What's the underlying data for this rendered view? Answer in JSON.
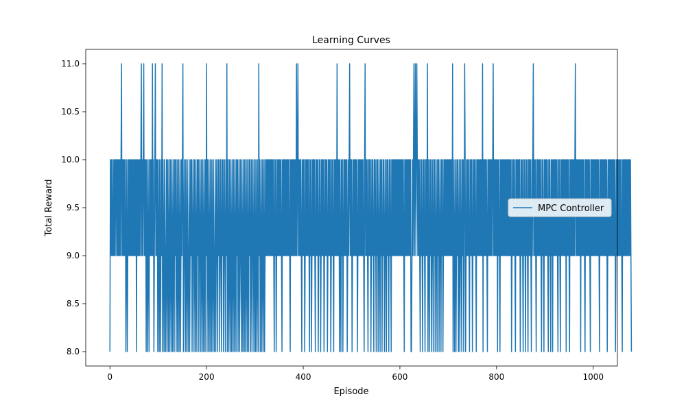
{
  "chart_data": {
    "type": "line",
    "title": "Learning Curves",
    "xlabel": "Episode",
    "ylabel": "Total Reward",
    "xlim": [
      -50,
      1050
    ],
    "ylim": [
      7.85,
      11.15
    ],
    "xticks": [
      0,
      200,
      400,
      600,
      800,
      1000
    ],
    "yticks": [
      8.0,
      8.5,
      9.0,
      9.5,
      10.0,
      10.5,
      11.0
    ],
    "xtick_labels": [
      "0",
      "200",
      "400",
      "600",
      "800",
      "1000"
    ],
    "ytick_labels": [
      "8.0",
      "8.5",
      "9.0",
      "9.5",
      "10.0",
      "10.5",
      "11.0"
    ],
    "grid": false,
    "legend": {
      "position": "center-right"
    },
    "series": [
      {
        "name": "MPC Controller",
        "color": "#1f77b4",
        "x_start": 0,
        "x_step": 1,
        "y": [
          8,
          10,
          9,
          10,
          9,
          10,
          9,
          9,
          10,
          9,
          10,
          9,
          10,
          10,
          9,
          10,
          9,
          10,
          9,
          10,
          9,
          10,
          9,
          10,
          11,
          9,
          10,
          9,
          10,
          9,
          10,
          9,
          10,
          8,
          9,
          10,
          8,
          9,
          10,
          9,
          10,
          9,
          10,
          9,
          10,
          9,
          10,
          9,
          10,
          9,
          10,
          9,
          10,
          9,
          10,
          8,
          10,
          9,
          10,
          9,
          10,
          9,
          10,
          9,
          10,
          11,
          9,
          10,
          9,
          10,
          11,
          9,
          10,
          9,
          10,
          8,
          10,
          9,
          8,
          10,
          9,
          8,
          10,
          9,
          10,
          9,
          10,
          9,
          11,
          9,
          10,
          8,
          9,
          10,
          11,
          9,
          10,
          9,
          10,
          8,
          10,
          9,
          8,
          10,
          9,
          8,
          10,
          9,
          11,
          8,
          10,
          9,
          8,
          10,
          9,
          8,
          9,
          10,
          8,
          10,
          9,
          8,
          10,
          9,
          8,
          10,
          9,
          8,
          10,
          9,
          8,
          10,
          9,
          8,
          10,
          9,
          10,
          8,
          9,
          10,
          8,
          9,
          10,
          8,
          9,
          10,
          8,
          9,
          10,
          9,
          10,
          11,
          8,
          9,
          10,
          9,
          8,
          10,
          9,
          8,
          10,
          9,
          8,
          9,
          10,
          8,
          9,
          10,
          9,
          10,
          8,
          9,
          10,
          9,
          8,
          10,
          9,
          8,
          10,
          9,
          8,
          10,
          9,
          10,
          8,
          9,
          10,
          9,
          8,
          10,
          9,
          8,
          10,
          9,
          8,
          10,
          9,
          8,
          10,
          9,
          11,
          8,
          10,
          9,
          8,
          10,
          9,
          8,
          10,
          9,
          8,
          10,
          9,
          8,
          10,
          9,
          8,
          9,
          10,
          8,
          9,
          10,
          9,
          8,
          10,
          9,
          10,
          8,
          9,
          10,
          9,
          8,
          10,
          9,
          10,
          8,
          9,
          10,
          9,
          8,
          10,
          9,
          11,
          8,
          10,
          9,
          8,
          10,
          9,
          8,
          10,
          9,
          8,
          10,
          9,
          8,
          10,
          9,
          8,
          10,
          9,
          8,
          10,
          9,
          10,
          8,
          9,
          10,
          8,
          9,
          10,
          9,
          8,
          10,
          9,
          8,
          10,
          9,
          8,
          10,
          9,
          8,
          10,
          9,
          8,
          10,
          9,
          8,
          10,
          9,
          10,
          8,
          9,
          10,
          8,
          9,
          10,
          9,
          8,
          10,
          9,
          8,
          10,
          9,
          8,
          10,
          9,
          8,
          11,
          9,
          10,
          8,
          9,
          10,
          8,
          9,
          10,
          8,
          9,
          10,
          8,
          9,
          10,
          9,
          10,
          9,
          10,
          9,
          10,
          9,
          10,
          9,
          10,
          9,
          10,
          9,
          10,
          9,
          10,
          9,
          8,
          10,
          9,
          10,
          8,
          9,
          10,
          9,
          10,
          9,
          10,
          9,
          10,
          9,
          10,
          9,
          8,
          10,
          9,
          10,
          9,
          10,
          9,
          10,
          9,
          10,
          9,
          10,
          9,
          10,
          9,
          10,
          9,
          8,
          10,
          9,
          10,
          9,
          10,
          9,
          10,
          9,
          10,
          9,
          10,
          9,
          11,
          9,
          10,
          11,
          9,
          10,
          9,
          10,
          9,
          10,
          9,
          8,
          10,
          9,
          10,
          9,
          10,
          8,
          9,
          10,
          9,
          10,
          9,
          10,
          9,
          10,
          9,
          8,
          10,
          9,
          10,
          8,
          9,
          10,
          9,
          10,
          9,
          10,
          9,
          8,
          10,
          9,
          10,
          9,
          10,
          8,
          9,
          10,
          9,
          10,
          8,
          9,
          10,
          9,
          10,
          9,
          10,
          8,
          9,
          10,
          9,
          10,
          9,
          10,
          8,
          9,
          10,
          9,
          10,
          9,
          10,
          8,
          9,
          10,
          9,
          10,
          9,
          8,
          10,
          9,
          10,
          9,
          10,
          9,
          11,
          9,
          10,
          9,
          10,
          8,
          10,
          9,
          8,
          10,
          9,
          10,
          8,
          9,
          10,
          9,
          10,
          9,
          10,
          9,
          10,
          8,
          9,
          10,
          9,
          10,
          11,
          9,
          10,
          9,
          10,
          8,
          9,
          10,
          9,
          10,
          9,
          10,
          9,
          10,
          9,
          10,
          8,
          9,
          10,
          9,
          10,
          9,
          10,
          9,
          10,
          9,
          10,
          9,
          10,
          9,
          8,
          10,
          11,
          9,
          10,
          9,
          10,
          9,
          8,
          10,
          9,
          10,
          9,
          10,
          8,
          9,
          10,
          9,
          10,
          9,
          8,
          10,
          9,
          10,
          9,
          8,
          10,
          9,
          10,
          8,
          9,
          10,
          9,
          8,
          10,
          9,
          10,
          8,
          9,
          10,
          9,
          10,
          8,
          9,
          10,
          9,
          8,
          10,
          9,
          10,
          9,
          8,
          10,
          9,
          10,
          9,
          8,
          10,
          9,
          10,
          9,
          10,
          9,
          10,
          9,
          10,
          9,
          10,
          9,
          10,
          9,
          10,
          9,
          10,
          9,
          10,
          9,
          10,
          9,
          10,
          9,
          10,
          9,
          8,
          10,
          9,
          10,
          9,
          10,
          9,
          10,
          9,
          10,
          9,
          10,
          9,
          10,
          8,
          8,
          9,
          10,
          9,
          10,
          11,
          9,
          10,
          11,
          9,
          10,
          11,
          10,
          9,
          10,
          9,
          10,
          9,
          8,
          10,
          9,
          10,
          9,
          8,
          10,
          9,
          10,
          9,
          8,
          10,
          9,
          10,
          9,
          11,
          8,
          10,
          9,
          8,
          10,
          9,
          10,
          8,
          9,
          10,
          9,
          8,
          10,
          9,
          10,
          8,
          9,
          10,
          9,
          8,
          10,
          9,
          10,
          8,
          9,
          10,
          9,
          8,
          10,
          9,
          10,
          8,
          9,
          10,
          9,
          10,
          9,
          10,
          9,
          10,
          9,
          10,
          9,
          10,
          9,
          10,
          9,
          10,
          9,
          10,
          9,
          11,
          8,
          9,
          10,
          8,
          9,
          10,
          8,
          9,
          10,
          9,
          10,
          8,
          9,
          10,
          8,
          9,
          10,
          9,
          8,
          10,
          9,
          10,
          8,
          9,
          11,
          10,
          8,
          9,
          10,
          9,
          10,
          9,
          10,
          9,
          8,
          10,
          9,
          10,
          9,
          10,
          8,
          9,
          10,
          9,
          10,
          9,
          10,
          9,
          8,
          10,
          9,
          10,
          9,
          10,
          9,
          10,
          9,
          10,
          9,
          10,
          9,
          11,
          8,
          10,
          9,
          10,
          9,
          10,
          9,
          10,
          9,
          8,
          10,
          9,
          10,
          9,
          10,
          9,
          10,
          9,
          10,
          9,
          10,
          11,
          9,
          10,
          9,
          10,
          9,
          10,
          9,
          10,
          8,
          10,
          9,
          10,
          9,
          8,
          10,
          9,
          10,
          9,
          10,
          9,
          10,
          9,
          10,
          9,
          10,
          9,
          10,
          9,
          10,
          9,
          10,
          9,
          10,
          9,
          10,
          9,
          10,
          8,
          9,
          10,
          9,
          10,
          9,
          10,
          9,
          8,
          10,
          9,
          10,
          9,
          10,
          9,
          10,
          9,
          10,
          8,
          9,
          10,
          9,
          10,
          9,
          8,
          10,
          9,
          10,
          9,
          8,
          10,
          9,
          10,
          9,
          8,
          10,
          9,
          10,
          9,
          10,
          9,
          8,
          10,
          9,
          10,
          11,
          9,
          10,
          9,
          10,
          9,
          8,
          10,
          9,
          10,
          9,
          10,
          9,
          10,
          9,
          10,
          9,
          8,
          10,
          9,
          10,
          9,
          8,
          10,
          9,
          10,
          9,
          10,
          9,
          10,
          9,
          8,
          10,
          9,
          10,
          9,
          8,
          10,
          9,
          10,
          8,
          10,
          9,
          10,
          9,
          10,
          9,
          10,
          9,
          10,
          9,
          8,
          10,
          9,
          10,
          9,
          8,
          10,
          9,
          10,
          9,
          10,
          9,
          10,
          9,
          10,
          9,
          10,
          8,
          10,
          9,
          10,
          9,
          10,
          9,
          8,
          10,
          9,
          10,
          9,
          10,
          9,
          10,
          9,
          10,
          9,
          10,
          11,
          9,
          10,
          9,
          10,
          9,
          10,
          9,
          10,
          9,
          10,
          8,
          10,
          9,
          10,
          9,
          10,
          9,
          10,
          9,
          8,
          10,
          9,
          10,
          9,
          10,
          9,
          10,
          9,
          10,
          9,
          8,
          10,
          9,
          10,
          9,
          10,
          9,
          10,
          9,
          10,
          9,
          10,
          9,
          10,
          9,
          10,
          9,
          10,
          9,
          8,
          10,
          9,
          10,
          9,
          10,
          9,
          10,
          9,
          10,
          9,
          10,
          9,
          10,
          9,
          10,
          8,
          9,
          10,
          9,
          10,
          9,
          10,
          9,
          10,
          9,
          10,
          9,
          10,
          9,
          10,
          9,
          10,
          8,
          9,
          10,
          9,
          10,
          9,
          10,
          9,
          10,
          9,
          10,
          9,
          10,
          9,
          8,
          10,
          9,
          10,
          9,
          10,
          9,
          10,
          9,
          10,
          9,
          10,
          9,
          10,
          9,
          10,
          9,
          10,
          9,
          8
        ]
      }
    ]
  }
}
